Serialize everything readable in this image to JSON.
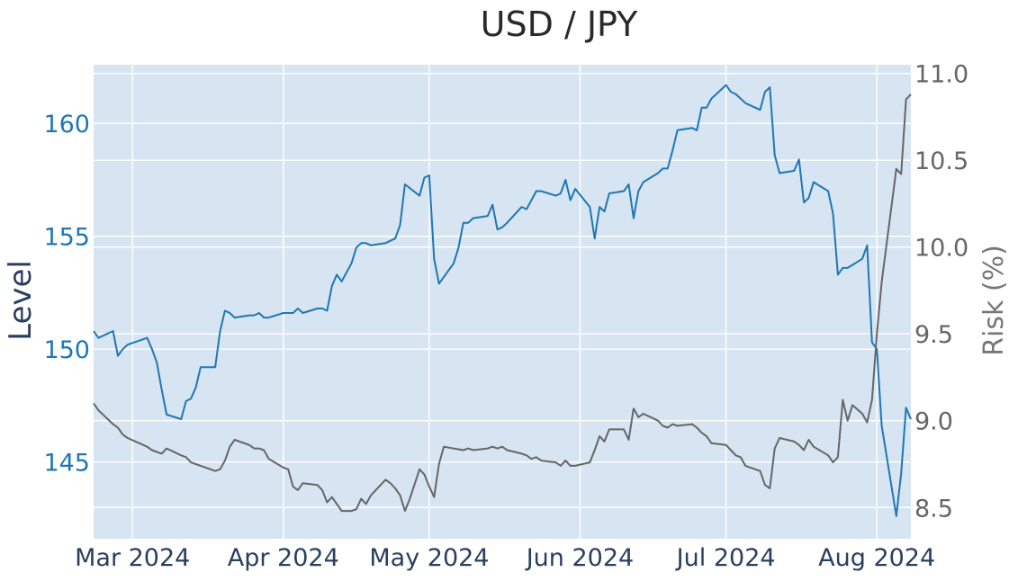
{
  "chart_data": {
    "type": "line",
    "title": "USD / JPY",
    "ylabel": "Level",
    "y2label": "Risk (%)",
    "xlim": [
      "2024-02-22",
      "2024-08-08"
    ],
    "ylim": [
      141.6,
      162.6
    ],
    "y2lim": [
      8.32,
      11.05
    ],
    "x_ticks": [
      "2024-03-01",
      "2024-04-01",
      "2024-05-01",
      "2024-06-01",
      "2024-07-01",
      "2024-08-01"
    ],
    "x_tick_labels": [
      "Mar 2024",
      "Apr 2024",
      "May 2024",
      "Jun 2024",
      "Jul 2024",
      "Aug 2024"
    ],
    "y_ticks": [
      145,
      150,
      155,
      160
    ],
    "y2_ticks": [
      8.5,
      9.0,
      9.5,
      10.0,
      10.5,
      11.0
    ],
    "y2_tick_labels": [
      "8.5",
      "9.0",
      "9.5",
      "10.0",
      "10.5",
      "11.0"
    ],
    "grid": true,
    "background": "#d6e5f1",
    "series": [
      {
        "axis": "left",
        "color": "#1f77b4",
        "points": [
          [
            "2024-02-22",
            150.8
          ],
          [
            "2024-02-23",
            150.5
          ],
          [
            "2024-02-26",
            150.8
          ],
          [
            "2024-02-27",
            149.7
          ],
          [
            "2024-02-28",
            150.0
          ],
          [
            "2024-02-29",
            150.2
          ],
          [
            "2024-03-04",
            150.5
          ],
          [
            "2024-03-05",
            150.0
          ],
          [
            "2024-03-06",
            149.4
          ],
          [
            "2024-03-07",
            148.2
          ],
          [
            "2024-03-08",
            147.1
          ],
          [
            "2024-03-11",
            146.9
          ],
          [
            "2024-03-12",
            147.7
          ],
          [
            "2024-03-13",
            147.8
          ],
          [
            "2024-03-14",
            148.3
          ],
          [
            "2024-03-15",
            149.2
          ],
          [
            "2024-03-18",
            149.2
          ],
          [
            "2024-03-19",
            150.8
          ],
          [
            "2024-03-20",
            151.7
          ],
          [
            "2024-03-21",
            151.6
          ],
          [
            "2024-03-22",
            151.4
          ],
          [
            "2024-03-25",
            151.5
          ],
          [
            "2024-03-26",
            151.5
          ],
          [
            "2024-03-27",
            151.6
          ],
          [
            "2024-03-28",
            151.4
          ],
          [
            "2024-03-29",
            151.4
          ],
          [
            "2024-04-01",
            151.6
          ],
          [
            "2024-04-02",
            151.6
          ],
          [
            "2024-04-03",
            151.6
          ],
          [
            "2024-04-04",
            151.8
          ],
          [
            "2024-04-05",
            151.6
          ],
          [
            "2024-04-08",
            151.8
          ],
          [
            "2024-04-09",
            151.8
          ],
          [
            "2024-04-10",
            151.7
          ],
          [
            "2024-04-11",
            152.8
          ],
          [
            "2024-04-12",
            153.3
          ],
          [
            "2024-04-13",
            153.0
          ],
          [
            "2024-04-15",
            153.8
          ],
          [
            "2024-04-16",
            154.5
          ],
          [
            "2024-04-17",
            154.7
          ],
          [
            "2024-04-18",
            154.7
          ],
          [
            "2024-04-19",
            154.6
          ],
          [
            "2024-04-22",
            154.7
          ],
          [
            "2024-04-23",
            154.8
          ],
          [
            "2024-04-24",
            154.9
          ],
          [
            "2024-04-25",
            155.5
          ],
          [
            "2024-04-26",
            157.3
          ],
          [
            "2024-04-29",
            156.8
          ],
          [
            "2024-04-30",
            157.6
          ],
          [
            "2024-05-01",
            157.7
          ],
          [
            "2024-05-02",
            154.0
          ],
          [
            "2024-05-03",
            152.9
          ],
          [
            "2024-05-06",
            153.8
          ],
          [
            "2024-05-07",
            154.5
          ],
          [
            "2024-05-08",
            155.6
          ],
          [
            "2024-05-09",
            155.6
          ],
          [
            "2024-05-10",
            155.8
          ],
          [
            "2024-05-13",
            155.9
          ],
          [
            "2024-05-14",
            156.4
          ],
          [
            "2024-05-15",
            155.3
          ],
          [
            "2024-05-16",
            155.4
          ],
          [
            "2024-05-17",
            155.6
          ],
          [
            "2024-05-20",
            156.3
          ],
          [
            "2024-05-21",
            156.2
          ],
          [
            "2024-05-22",
            156.6
          ],
          [
            "2024-05-23",
            157.0
          ],
          [
            "2024-05-24",
            157.0
          ],
          [
            "2024-05-27",
            156.8
          ],
          [
            "2024-05-28",
            156.9
          ],
          [
            "2024-05-29",
            157.5
          ],
          [
            "2024-05-30",
            156.6
          ],
          [
            "2024-05-31",
            157.1
          ],
          [
            "2024-06-03",
            156.3
          ],
          [
            "2024-06-04",
            154.9
          ],
          [
            "2024-06-05",
            156.3
          ],
          [
            "2024-06-06",
            156.1
          ],
          [
            "2024-06-07",
            156.9
          ],
          [
            "2024-06-10",
            157.0
          ],
          [
            "2024-06-11",
            157.3
          ],
          [
            "2024-06-12",
            155.8
          ],
          [
            "2024-06-13",
            157.0
          ],
          [
            "2024-06-14",
            157.4
          ],
          [
            "2024-06-17",
            157.8
          ],
          [
            "2024-06-18",
            158.0
          ],
          [
            "2024-06-19",
            158.0
          ],
          [
            "2024-06-20",
            158.8
          ],
          [
            "2024-06-21",
            159.7
          ],
          [
            "2024-06-24",
            159.8
          ],
          [
            "2024-06-25",
            159.7
          ],
          [
            "2024-06-26",
            160.7
          ],
          [
            "2024-06-27",
            160.7
          ],
          [
            "2024-06-28",
            161.1
          ],
          [
            "2024-07-01",
            161.7
          ],
          [
            "2024-07-02",
            161.4
          ],
          [
            "2024-07-03",
            161.3
          ],
          [
            "2024-07-04",
            161.1
          ],
          [
            "2024-07-05",
            160.9
          ],
          [
            "2024-07-08",
            160.6
          ],
          [
            "2024-07-09",
            161.4
          ],
          [
            "2024-07-10",
            161.6
          ],
          [
            "2024-07-11",
            158.6
          ],
          [
            "2024-07-12",
            157.8
          ],
          [
            "2024-07-15",
            157.9
          ],
          [
            "2024-07-16",
            158.4
          ],
          [
            "2024-07-17",
            156.5
          ],
          [
            "2024-07-18",
            156.7
          ],
          [
            "2024-07-19",
            157.4
          ],
          [
            "2024-07-22",
            157.0
          ],
          [
            "2024-07-23",
            156.0
          ],
          [
            "2024-07-24",
            153.3
          ],
          [
            "2024-07-25",
            153.6
          ],
          [
            "2024-07-26",
            153.6
          ],
          [
            "2024-07-29",
            154.0
          ],
          [
            "2024-07-30",
            154.6
          ],
          [
            "2024-07-31",
            150.3
          ],
          [
            "2024-08-01",
            150.0
          ],
          [
            "2024-08-02",
            146.6
          ],
          [
            "2024-08-05",
            142.6
          ],
          [
            "2024-08-06",
            144.5
          ],
          [
            "2024-08-07",
            147.4
          ],
          [
            "2024-08-08",
            146.9
          ]
        ]
      },
      {
        "axis": "right",
        "color": "#666666",
        "points": [
          [
            "2024-02-22",
            9.1
          ],
          [
            "2024-02-23",
            9.06
          ],
          [
            "2024-02-26",
            8.98
          ],
          [
            "2024-02-27",
            8.96
          ],
          [
            "2024-02-28",
            8.92
          ],
          [
            "2024-02-29",
            8.9
          ],
          [
            "2024-03-04",
            8.85
          ],
          [
            "2024-03-05",
            8.83
          ],
          [
            "2024-03-06",
            8.82
          ],
          [
            "2024-03-07",
            8.81
          ],
          [
            "2024-03-08",
            8.84
          ],
          [
            "2024-03-11",
            8.8
          ],
          [
            "2024-03-12",
            8.79
          ],
          [
            "2024-03-13",
            8.76
          ],
          [
            "2024-03-14",
            8.75
          ],
          [
            "2024-03-15",
            8.74
          ],
          [
            "2024-03-18",
            8.71
          ],
          [
            "2024-03-19",
            8.72
          ],
          [
            "2024-03-20",
            8.77
          ],
          [
            "2024-03-21",
            8.85
          ],
          [
            "2024-03-22",
            8.89
          ],
          [
            "2024-03-25",
            8.86
          ],
          [
            "2024-03-26",
            8.84
          ],
          [
            "2024-03-27",
            8.84
          ],
          [
            "2024-03-28",
            8.83
          ],
          [
            "2024-03-29",
            8.78
          ],
          [
            "2024-04-01",
            8.73
          ],
          [
            "2024-04-02",
            8.72
          ],
          [
            "2024-04-03",
            8.62
          ],
          [
            "2024-04-04",
            8.6
          ],
          [
            "2024-04-05",
            8.64
          ],
          [
            "2024-04-08",
            8.63
          ],
          [
            "2024-04-09",
            8.6
          ],
          [
            "2024-04-10",
            8.53
          ],
          [
            "2024-04-11",
            8.56
          ],
          [
            "2024-04-12",
            8.52
          ],
          [
            "2024-04-13",
            8.48
          ],
          [
            "2024-04-15",
            8.48
          ],
          [
            "2024-04-16",
            8.49
          ],
          [
            "2024-04-17",
            8.55
          ],
          [
            "2024-04-18",
            8.52
          ],
          [
            "2024-04-19",
            8.57
          ],
          [
            "2024-04-22",
            8.66
          ],
          [
            "2024-04-23",
            8.64
          ],
          [
            "2024-04-24",
            8.61
          ],
          [
            "2024-04-25",
            8.57
          ],
          [
            "2024-04-26",
            8.48
          ],
          [
            "2024-04-27",
            8.55
          ],
          [
            "2024-04-29",
            8.72
          ],
          [
            "2024-04-30",
            8.69
          ],
          [
            "2024-05-01",
            8.62
          ],
          [
            "2024-05-02",
            8.56
          ],
          [
            "2024-05-03",
            8.75
          ],
          [
            "2024-05-04",
            8.85
          ],
          [
            "2024-05-08",
            8.83
          ],
          [
            "2024-05-09",
            8.84
          ],
          [
            "2024-05-10",
            8.83
          ],
          [
            "2024-05-13",
            8.84
          ],
          [
            "2024-05-14",
            8.85
          ],
          [
            "2024-05-15",
            8.84
          ],
          [
            "2024-05-16",
            8.85
          ],
          [
            "2024-05-17",
            8.83
          ],
          [
            "2024-05-20",
            8.81
          ],
          [
            "2024-05-21",
            8.8
          ],
          [
            "2024-05-22",
            8.78
          ],
          [
            "2024-05-23",
            8.79
          ],
          [
            "2024-05-24",
            8.77
          ],
          [
            "2024-05-27",
            8.76
          ],
          [
            "2024-05-28",
            8.74
          ],
          [
            "2024-05-29",
            8.77
          ],
          [
            "2024-05-30",
            8.74
          ],
          [
            "2024-05-31",
            8.74
          ],
          [
            "2024-06-03",
            8.76
          ],
          [
            "2024-06-04",
            8.83
          ],
          [
            "2024-06-05",
            8.91
          ],
          [
            "2024-06-06",
            8.88
          ],
          [
            "2024-06-07",
            8.95
          ],
          [
            "2024-06-10",
            8.95
          ],
          [
            "2024-06-11",
            8.89
          ],
          [
            "2024-06-12",
            9.07
          ],
          [
            "2024-06-13",
            9.02
          ],
          [
            "2024-06-14",
            9.04
          ],
          [
            "2024-06-17",
            9.0
          ],
          [
            "2024-06-18",
            8.97
          ],
          [
            "2024-06-19",
            8.96
          ],
          [
            "2024-06-20",
            8.98
          ],
          [
            "2024-06-21",
            8.97
          ],
          [
            "2024-06-24",
            8.98
          ],
          [
            "2024-06-25",
            8.96
          ],
          [
            "2024-06-26",
            8.93
          ],
          [
            "2024-06-27",
            8.91
          ],
          [
            "2024-06-28",
            8.87
          ],
          [
            "2024-07-01",
            8.86
          ],
          [
            "2024-07-02",
            8.83
          ],
          [
            "2024-07-03",
            8.8
          ],
          [
            "2024-07-04",
            8.79
          ],
          [
            "2024-07-05",
            8.74
          ],
          [
            "2024-07-08",
            8.71
          ],
          [
            "2024-07-09",
            8.63
          ],
          [
            "2024-07-10",
            8.61
          ],
          [
            "2024-07-11",
            8.84
          ],
          [
            "2024-07-12",
            8.9
          ],
          [
            "2024-07-15",
            8.88
          ],
          [
            "2024-07-16",
            8.86
          ],
          [
            "2024-07-17",
            8.83
          ],
          [
            "2024-07-18",
            8.89
          ],
          [
            "2024-07-19",
            8.85
          ],
          [
            "2024-07-22",
            8.8
          ],
          [
            "2024-07-23",
            8.76
          ],
          [
            "2024-07-24",
            8.79
          ],
          [
            "2024-07-25",
            9.12
          ],
          [
            "2024-07-26",
            9.0
          ],
          [
            "2024-07-27",
            9.09
          ],
          [
            "2024-07-29",
            9.04
          ],
          [
            "2024-07-30",
            8.99
          ],
          [
            "2024-07-31",
            9.12
          ],
          [
            "2024-08-01",
            9.5
          ],
          [
            "2024-08-02",
            9.8
          ],
          [
            "2024-08-05",
            10.45
          ],
          [
            "2024-08-06",
            10.42
          ],
          [
            "2024-08-07",
            10.85
          ],
          [
            "2024-08-08",
            10.88
          ]
        ]
      }
    ]
  }
}
